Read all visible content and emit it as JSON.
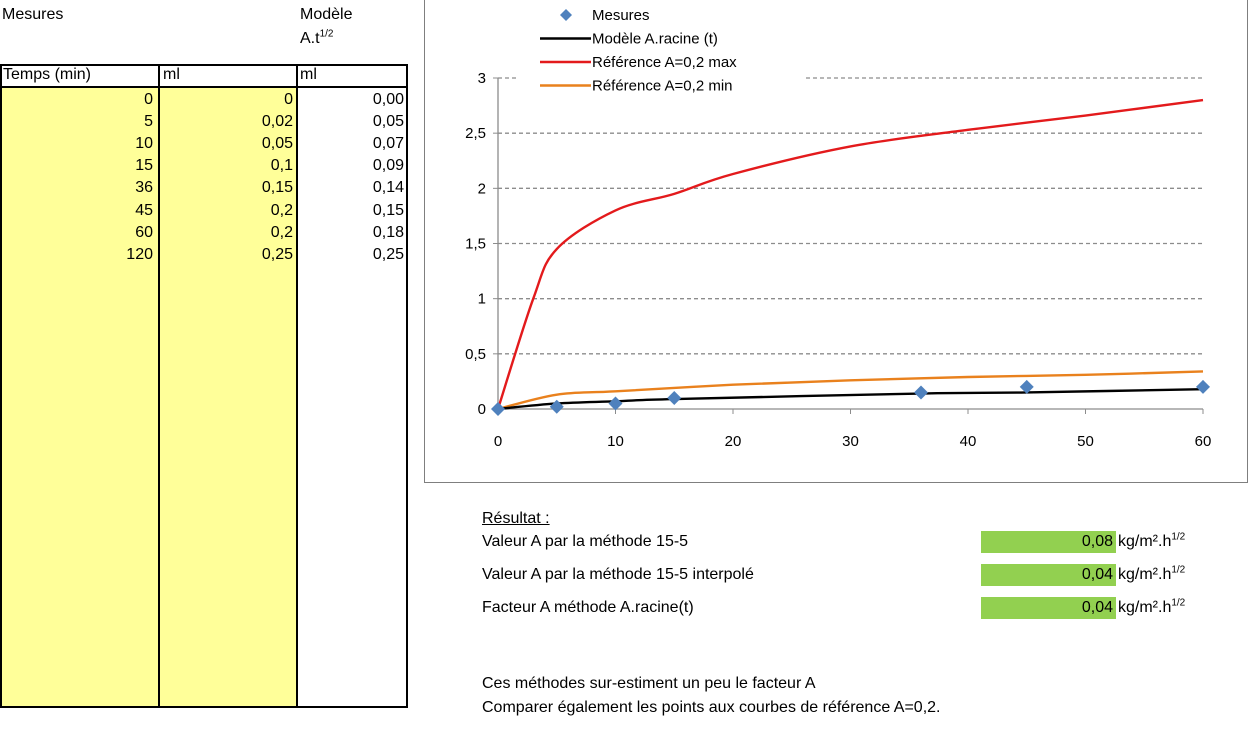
{
  "table": {
    "title_mesures": "Mesures",
    "title_modele_line1": "Modèle",
    "title_modele_line2": "A.t",
    "title_modele_sup": "1/2",
    "headers": [
      "Temps (min)",
      "ml",
      "ml"
    ],
    "rows": [
      {
        "temps": "0",
        "ml": "0",
        "modele": "0,00"
      },
      {
        "temps": "5",
        "ml": "0,02",
        "modele": "0,05"
      },
      {
        "temps": "10",
        "ml": "0,05",
        "modele": "0,07"
      },
      {
        "temps": "15",
        "ml": "0,1",
        "modele": "0,09"
      },
      {
        "temps": "36",
        "ml": "0,15",
        "modele": "0,14"
      },
      {
        "temps": "45",
        "ml": "0,2",
        "modele": "0,15"
      },
      {
        "temps": "60",
        "ml": "0,2",
        "modele": "0,18"
      },
      {
        "temps": "120",
        "ml": "0,25",
        "modele": "0,25"
      }
    ],
    "colors": {
      "input_fill": "#ffff99"
    }
  },
  "chart_data": {
    "type": "line",
    "xlim": [
      0,
      60
    ],
    "ylim": [
      0,
      3
    ],
    "x_ticks": [
      "0",
      "10",
      "20",
      "30",
      "40",
      "50",
      "60"
    ],
    "y_ticks": [
      "0",
      "0,5",
      "1",
      "1,5",
      "2",
      "2,5",
      "3"
    ],
    "grid": "horizontal dashed",
    "legend_position": "top",
    "series": [
      {
        "name": "Mesures",
        "kind": "scatter",
        "marker": "diamond",
        "color": "#4f81bd",
        "x": [
          0,
          5,
          10,
          15,
          36,
          45,
          60
        ],
        "y": [
          0,
          0.02,
          0.05,
          0.1,
          0.15,
          0.2,
          0.2
        ]
      },
      {
        "name": "Modèle A.racine (t)",
        "kind": "line",
        "color": "#000000",
        "x": [
          0,
          5,
          10,
          15,
          36,
          45,
          60
        ],
        "y": [
          0,
          0.05,
          0.07,
          0.09,
          0.14,
          0.15,
          0.18
        ]
      },
      {
        "name": "Référence A=0,2 max",
        "kind": "line",
        "color": "#e31a1c",
        "x": [
          0,
          3,
          5,
          10,
          15,
          20,
          30,
          40,
          50,
          60
        ],
        "y": [
          0,
          1.0,
          1.45,
          1.8,
          1.95,
          2.13,
          2.38,
          2.53,
          2.66,
          2.8
        ]
      },
      {
        "name": "Référence A=0,2 min",
        "kind": "line",
        "color": "#e9811d",
        "x": [
          0,
          5,
          10,
          20,
          30,
          40,
          50,
          60
        ],
        "y": [
          0,
          0.13,
          0.16,
          0.22,
          0.26,
          0.29,
          0.31,
          0.34
        ]
      }
    ]
  },
  "results": {
    "title": "Résultat :",
    "rows": [
      {
        "label": "Valeur A par la méthode 15-5",
        "value": "0,08",
        "unit": "kg/m².h",
        "unit_sup": "1/2"
      },
      {
        "label": "Valeur A par la méthode 15-5 interpolé",
        "value": "0,04",
        "unit": "kg/m².h",
        "unit_sup": "1/2"
      },
      {
        "label": "Facteur A méthode A.racine(t)",
        "value": "0,04",
        "unit": "kg/m².h",
        "unit_sup": "1/2"
      }
    ],
    "note1": "Ces méthodes sur-estiment un peu le facteur A",
    "note2": "Comparer également les points aux courbes de référence A=0,2.",
    "colors": {
      "result_fill": "#92d050"
    }
  }
}
